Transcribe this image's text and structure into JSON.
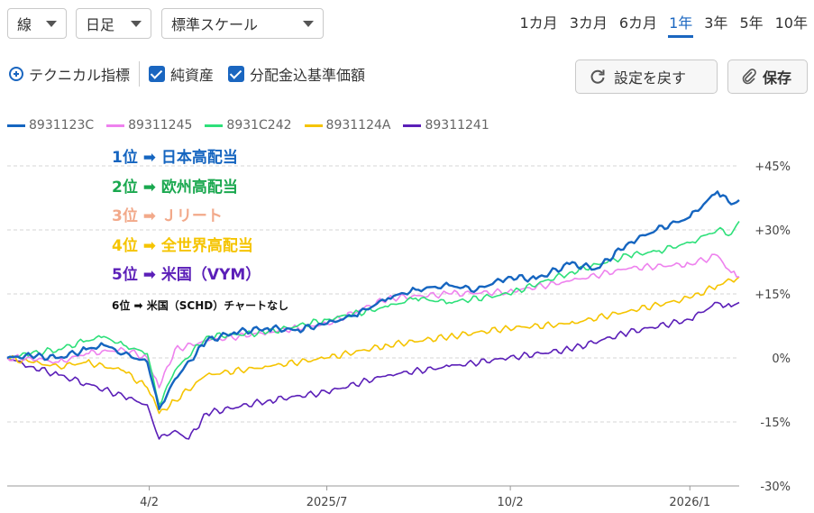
{
  "toolbar": {
    "chart_type": "線",
    "interval": "日足",
    "scale": "標準スケール",
    "periods": [
      "1カ月",
      "3カ月",
      "6カ月",
      "1年",
      "3年",
      "5年",
      "10年"
    ],
    "active_period": "1年",
    "technical_label": "テクニカル指標",
    "net_assets_label": "純資産",
    "dividend_label": "分配金込基準価額",
    "reset_label": "設定を戻す",
    "save_label": "保存"
  },
  "ranking": {
    "r1": "1位 ➡ 日本高配当",
    "r2": "2位 ➡ 欧州高配当",
    "r3": "3位 ➡ Ｊリート",
    "r4": "4位 ➡ 全世界高配当",
    "r5": "5位 ➡ 米国（VYM）",
    "r6": "6位 ➡ 米国（SCHD）チャートなし"
  },
  "colors": {
    "blue": "#1565c0",
    "pink": "#ee82ee",
    "green": "#2ee07a",
    "yellow": "#f5c400",
    "purple": "#5b1fb8",
    "r3": "#f2a98a"
  },
  "chart_data": {
    "type": "line",
    "ylim": [
      -30,
      45
    ],
    "y_ticks": [
      "+45%",
      "+30%",
      "+15%",
      "0%",
      "-15%",
      "-30%"
    ],
    "y_tick_values": [
      45,
      30,
      15,
      0,
      -15,
      -30
    ],
    "x_ticks": [
      "4/2",
      "2025/7",
      "10/2",
      "2026/1"
    ],
    "x_tick_dates": [
      "2025-04-02",
      "2025-07-01",
      "2025-10-02",
      "2026-01-01"
    ],
    "series": [
      {
        "name": "8931123C",
        "color": "#1565c0",
        "points": [
          [
            "2025-01-20",
            0
          ],
          [
            "2025-02-01",
            0.5
          ],
          [
            "2025-02-15",
            0
          ],
          [
            "2025-03-01",
            2
          ],
          [
            "2025-03-10",
            3
          ],
          [
            "2025-03-20",
            1
          ],
          [
            "2025-04-01",
            -1
          ],
          [
            "2025-04-07",
            -12
          ],
          [
            "2025-04-15",
            -5
          ],
          [
            "2025-05-01",
            4
          ],
          [
            "2025-05-15",
            6
          ],
          [
            "2025-06-01",
            7
          ],
          [
            "2025-06-15",
            6.5
          ],
          [
            "2025-07-01",
            8
          ],
          [
            "2025-07-15",
            10
          ],
          [
            "2025-08-01",
            14
          ],
          [
            "2025-08-15",
            16
          ],
          [
            "2025-09-01",
            17
          ],
          [
            "2025-09-15",
            16
          ],
          [
            "2025-10-01",
            19
          ],
          [
            "2025-10-15",
            18.5
          ],
          [
            "2025-11-01",
            22
          ],
          [
            "2025-11-15",
            21
          ],
          [
            "2025-12-01",
            27
          ],
          [
            "2025-12-15",
            30
          ],
          [
            "2026-01-01",
            33
          ],
          [
            "2026-01-15",
            39
          ],
          [
            "2026-01-22",
            36
          ],
          [
            "2026-01-26",
            37
          ]
        ]
      },
      {
        "name": "89311245",
        "color": "#ee82ee",
        "points": [
          [
            "2025-01-20",
            0
          ],
          [
            "2025-02-01",
            0
          ],
          [
            "2025-02-15",
            -1
          ],
          [
            "2025-03-01",
            1
          ],
          [
            "2025-03-20",
            2
          ],
          [
            "2025-04-01",
            0
          ],
          [
            "2025-04-07",
            -7
          ],
          [
            "2025-04-15",
            2
          ],
          [
            "2025-05-01",
            4
          ],
          [
            "2025-06-01",
            6
          ],
          [
            "2025-07-01",
            8
          ],
          [
            "2025-08-01",
            14
          ],
          [
            "2025-09-01",
            15
          ],
          [
            "2025-10-01",
            15.5
          ],
          [
            "2025-11-01",
            18
          ],
          [
            "2025-12-01",
            21
          ],
          [
            "2026-01-01",
            22
          ],
          [
            "2026-01-15",
            24
          ],
          [
            "2026-01-22",
            20
          ],
          [
            "2026-01-26",
            19
          ]
        ]
      },
      {
        "name": "8931C242",
        "color": "#2ee07a",
        "points": [
          [
            "2025-01-20",
            0
          ],
          [
            "2025-02-01",
            1
          ],
          [
            "2025-02-15",
            2
          ],
          [
            "2025-03-01",
            4
          ],
          [
            "2025-03-10",
            5
          ],
          [
            "2025-03-20",
            3
          ],
          [
            "2025-04-01",
            1
          ],
          [
            "2025-04-07",
            -11
          ],
          [
            "2025-04-15",
            -3
          ],
          [
            "2025-05-01",
            5
          ],
          [
            "2025-06-01",
            6
          ],
          [
            "2025-07-01",
            9
          ],
          [
            "2025-08-01",
            12
          ],
          [
            "2025-08-15",
            14
          ],
          [
            "2025-09-01",
            13
          ],
          [
            "2025-10-01",
            15
          ],
          [
            "2025-11-01",
            20
          ],
          [
            "2025-12-01",
            24
          ],
          [
            "2025-12-15",
            25
          ],
          [
            "2026-01-01",
            27
          ],
          [
            "2026-01-15",
            30
          ],
          [
            "2026-01-22",
            29
          ],
          [
            "2026-01-26",
            32
          ]
        ]
      },
      {
        "name": "8931124A",
        "color": "#f5c400",
        "points": [
          [
            "2025-01-20",
            0
          ],
          [
            "2025-02-01",
            -1
          ],
          [
            "2025-02-15",
            -2
          ],
          [
            "2025-03-01",
            -1
          ],
          [
            "2025-03-20",
            -3
          ],
          [
            "2025-04-01",
            -7
          ],
          [
            "2025-04-07",
            -13
          ],
          [
            "2025-04-15",
            -10
          ],
          [
            "2025-05-01",
            -4
          ],
          [
            "2025-06-01",
            -2
          ],
          [
            "2025-07-01",
            0
          ],
          [
            "2025-08-01",
            3
          ],
          [
            "2025-09-01",
            5
          ],
          [
            "2025-10-01",
            7
          ],
          [
            "2025-11-01",
            8
          ],
          [
            "2025-12-01",
            11
          ],
          [
            "2026-01-01",
            14
          ],
          [
            "2026-01-15",
            17
          ],
          [
            "2026-01-26",
            19
          ]
        ]
      },
      {
        "name": "89311241",
        "color": "#5b1fb8",
        "points": [
          [
            "2025-01-20",
            0
          ],
          [
            "2025-02-01",
            -2
          ],
          [
            "2025-02-15",
            -4
          ],
          [
            "2025-03-01",
            -6
          ],
          [
            "2025-03-20",
            -9
          ],
          [
            "2025-04-01",
            -11
          ],
          [
            "2025-04-07",
            -19
          ],
          [
            "2025-04-15",
            -17
          ],
          [
            "2025-04-22",
            -19
          ],
          [
            "2025-05-01",
            -13
          ],
          [
            "2025-06-01",
            -10
          ],
          [
            "2025-07-01",
            -8
          ],
          [
            "2025-08-01",
            -4
          ],
          [
            "2025-09-01",
            -2
          ],
          [
            "2025-10-01",
            0
          ],
          [
            "2025-11-01",
            2
          ],
          [
            "2025-12-01",
            6
          ],
          [
            "2026-01-01",
            9
          ],
          [
            "2026-01-15",
            13
          ],
          [
            "2026-01-22",
            12
          ],
          [
            "2026-01-26",
            13
          ]
        ]
      }
    ]
  }
}
